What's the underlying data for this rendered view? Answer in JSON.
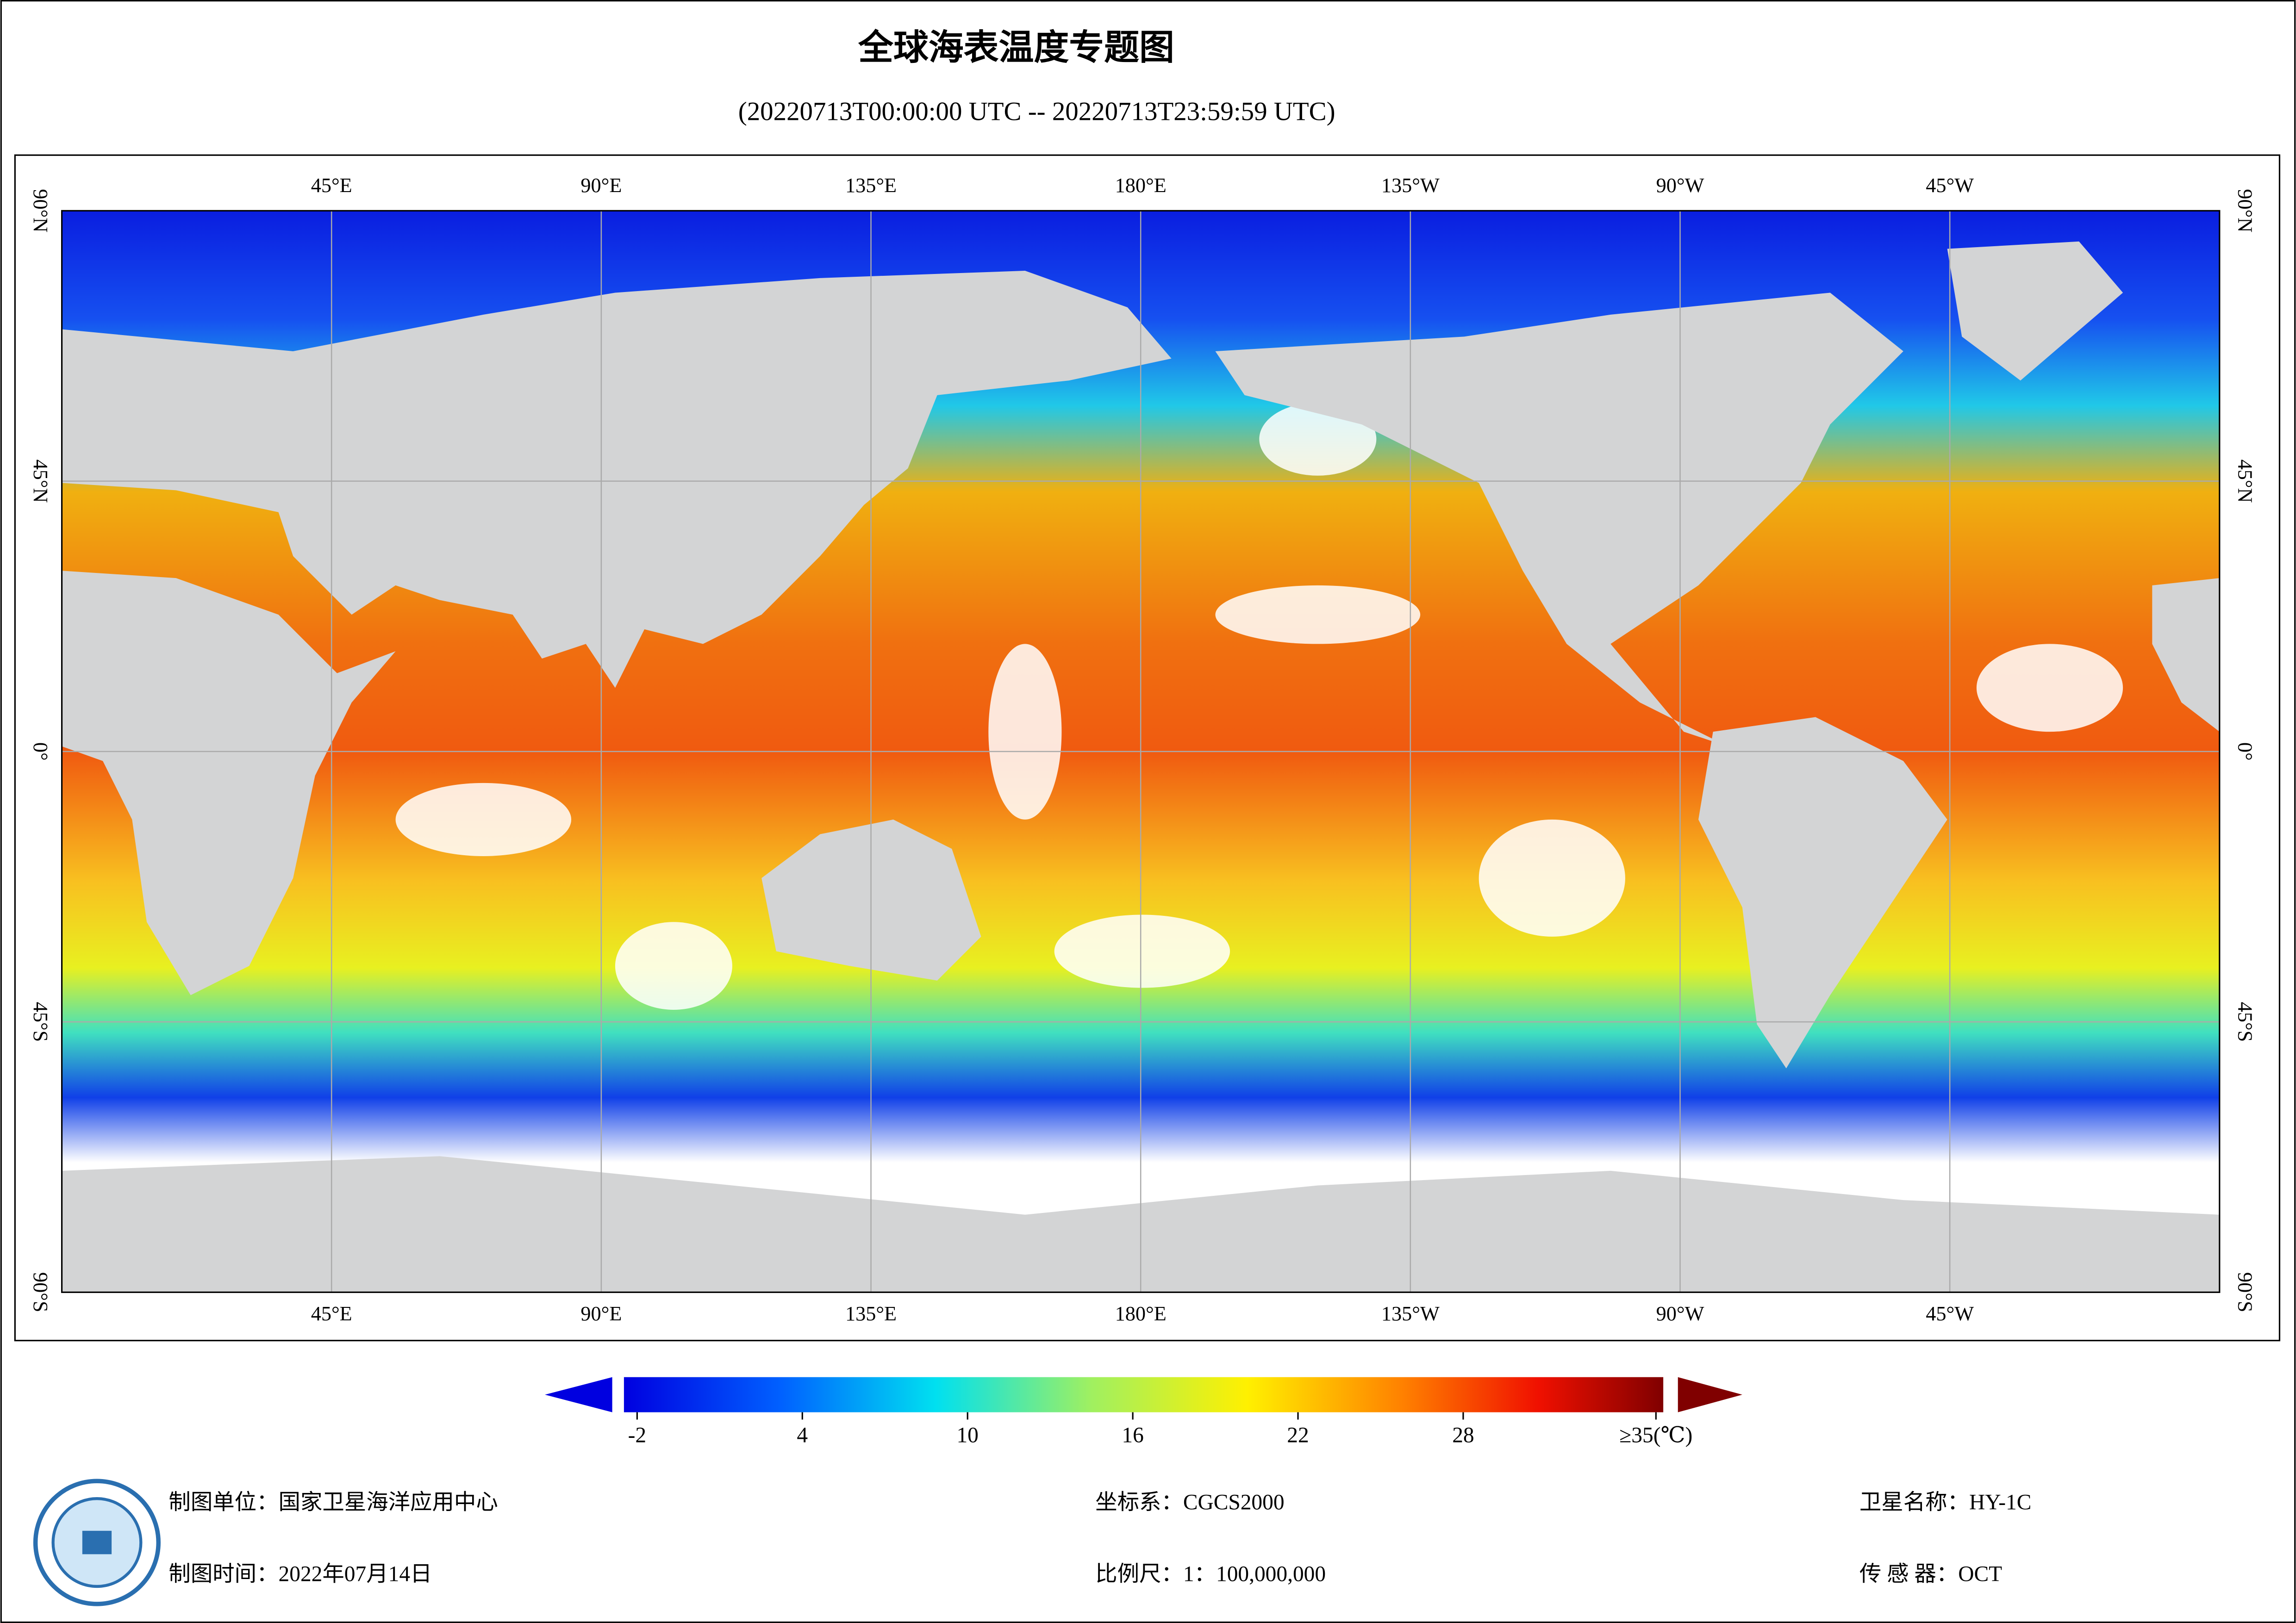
{
  "header": {
    "title": "全球海表温度专题图",
    "subtitle": "(20220713T00:00:00 UTC -- 20220713T23:59:59 UTC)"
  },
  "map": {
    "lon_range": [
      0,
      360
    ],
    "lat_range": [
      -90,
      90
    ],
    "lon_ticks": [
      {
        "value": 45,
        "label": "45°E"
      },
      {
        "value": 90,
        "label": "90°E"
      },
      {
        "value": 135,
        "label": "135°E"
      },
      {
        "value": 180,
        "label": "180°E"
      },
      {
        "value": 225,
        "label": "135°W"
      },
      {
        "value": 270,
        "label": "90°W"
      },
      {
        "value": 315,
        "label": "45°W"
      }
    ],
    "lat_ticks": [
      {
        "value": 90,
        "label": "90°N"
      },
      {
        "value": 45,
        "label": "45°N"
      },
      {
        "value": 0,
        "label": "0°"
      },
      {
        "value": -45,
        "label": "45°S"
      },
      {
        "value": -90,
        "label": "90°S"
      }
    ]
  },
  "colorbar": {
    "range": [
      -2,
      35
    ],
    "ticks": [
      -2,
      4,
      10,
      16,
      22,
      28,
      {
        "value": 35,
        "label": "≥35(℃)"
      }
    ]
  },
  "footer": {
    "unit": "制图单位：国家卫星海洋应用中心",
    "crs": "坐标系：CGCS2000",
    "satellite": "卫星名称：HY-1C",
    "date": "制图时间：2022年07月14日",
    "scale": "比例尺：1：100,000,000",
    "sensor": "传 感 器：OCT"
  }
}
